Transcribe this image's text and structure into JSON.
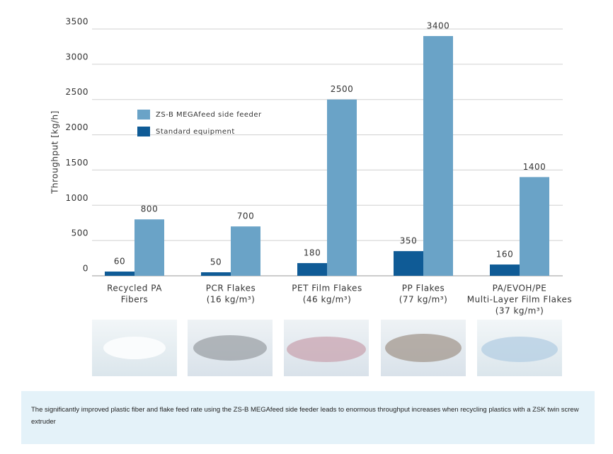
{
  "chart_data": {
    "type": "bar",
    "y_label": "Throughput [kg/h]",
    "categories": [
      [
        "Recycled PA",
        "Fibers"
      ],
      [
        "PCR Flakes",
        "(16 kg/m³)"
      ],
      [
        "PET Film Flakes",
        "(46 kg/m³)"
      ],
      [
        "PP Flakes",
        "(77 kg/m³)"
      ],
      [
        "PA/EVOH/PE",
        "Multi-Layer Film Flakes",
        "(37 kg/m³)"
      ]
    ],
    "series": [
      {
        "name": "ZS-B MEGAfeed side feeder",
        "color": "#6aa3c7",
        "values": [
          800,
          700,
          2500,
          3400,
          1400
        ]
      },
      {
        "name": "Standard equipment",
        "color": "#0f5b96",
        "values": [
          60,
          50,
          180,
          350,
          160
        ]
      }
    ],
    "ylim": [
      0,
      3500
    ],
    "yticks": [
      0,
      500,
      1000,
      1500,
      2000,
      2500,
      3000,
      3500
    ],
    "grid": true
  },
  "caption": "The significantly improved plastic fiber and flake feed rate using the ZS-B MEGAfeed side feeder leads to enormous throughput increases when recycling plastics with a ZSK twin screw extruder"
}
